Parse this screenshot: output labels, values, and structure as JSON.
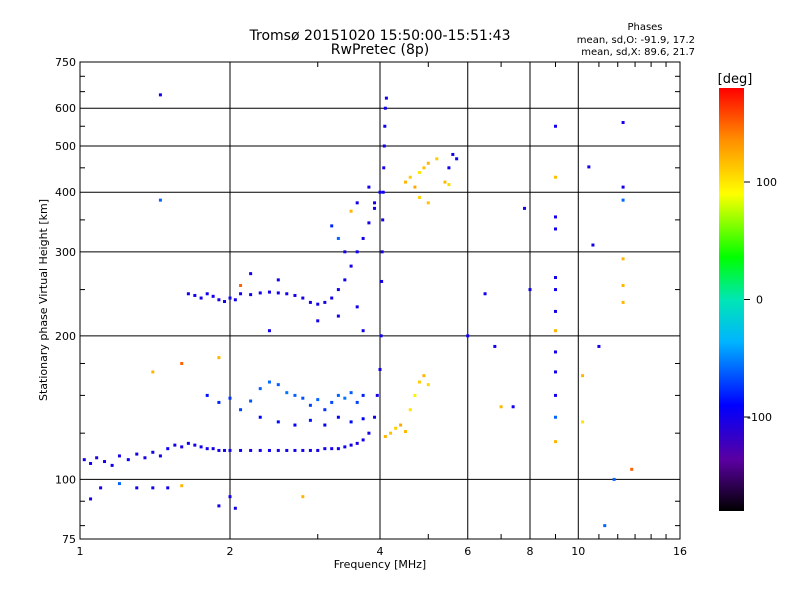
{
  "chart_data": {
    "type": "scatter",
    "title": "Tromsø 20151020 15:50:00-15:51:43",
    "subtitle": "RwPretec (8p)",
    "xlabel": "Frequency [MHz]",
    "ylabel": "Stationary phase Virtual Height [km]",
    "x_scale": "log",
    "y_scale": "log",
    "xlim": [
      1,
      16
    ],
    "ylim": [
      75,
      750
    ],
    "x_ticks": [
      1,
      2,
      4,
      6,
      8,
      10,
      16
    ],
    "y_ticks": [
      75,
      100,
      200,
      300,
      400,
      500,
      600,
      750
    ],
    "grid": true,
    "phase_info": {
      "title": "Phases",
      "line_o": "mean, sd,O: -91.9, 17.2",
      "line_x": "mean, sd,X:  89.6, 21.7"
    },
    "colorbar": {
      "label": "[deg]",
      "ticks": [
        100,
        0,
        -100
      ],
      "range": [
        -180,
        180
      ],
      "colormap": "rainbow"
    },
    "series": [
      {
        "points": [
          [
            1.02,
            110,
            -100
          ],
          [
            1.05,
            108,
            -95
          ],
          [
            1.08,
            111,
            -105
          ],
          [
            1.12,
            109,
            -100
          ],
          [
            1.16,
            107,
            -98
          ],
          [
            1.2,
            112,
            -102
          ],
          [
            1.25,
            110,
            -96
          ],
          [
            1.3,
            113,
            -100
          ],
          [
            1.35,
            111,
            -104
          ],
          [
            1.4,
            114,
            -98
          ],
          [
            1.45,
            112,
            -100
          ],
          [
            1.5,
            116,
            -95
          ],
          [
            1.55,
            118,
            -100
          ],
          [
            1.6,
            117,
            -103
          ],
          [
            1.65,
            119,
            -97
          ],
          [
            1.7,
            118,
            -100
          ],
          [
            1.75,
            117,
            -99
          ],
          [
            1.8,
            116,
            -101
          ],
          [
            1.85,
            116,
            -100
          ],
          [
            1.9,
            115,
            -98
          ],
          [
            1.95,
            115,
            -102
          ],
          [
            2.0,
            115,
            -100
          ],
          [
            2.1,
            115,
            -99
          ],
          [
            2.2,
            115,
            -101
          ],
          [
            2.3,
            115,
            -100
          ],
          [
            2.4,
            115,
            -98
          ],
          [
            2.5,
            115,
            -102
          ],
          [
            2.6,
            115,
            -100
          ],
          [
            2.7,
            115,
            -99
          ],
          [
            2.8,
            115,
            -101
          ],
          [
            2.9,
            115,
            -100
          ],
          [
            3.0,
            115,
            -100
          ],
          [
            3.1,
            116,
            -99
          ],
          [
            3.2,
            116,
            -101
          ],
          [
            3.3,
            116,
            -100
          ],
          [
            3.4,
            117,
            -98
          ],
          [
            3.5,
            118,
            -100
          ],
          [
            3.6,
            119,
            -102
          ],
          [
            3.7,
            121,
            -100
          ],
          [
            3.8,
            125,
            -99
          ],
          [
            3.9,
            135,
            -100
          ],
          [
            3.95,
            150,
            -101
          ],
          [
            4.0,
            170,
            -100
          ],
          [
            4.02,
            200,
            -98
          ],
          [
            4.03,
            260,
            -100
          ],
          [
            4.04,
            300,
            -102
          ],
          [
            4.05,
            350,
            -100
          ],
          [
            4.06,
            400,
            -99
          ],
          [
            4.07,
            450,
            -101
          ],
          [
            4.08,
            500,
            -100
          ],
          [
            4.09,
            550,
            -98
          ],
          [
            4.1,
            600,
            -100
          ],
          [
            4.12,
            630,
            -102
          ],
          [
            1.65,
            245,
            -100
          ],
          [
            1.7,
            243,
            -98
          ],
          [
            1.75,
            240,
            -102
          ],
          [
            1.8,
            245,
            -100
          ],
          [
            1.85,
            242,
            -99
          ],
          [
            1.9,
            238,
            -101
          ],
          [
            1.95,
            236,
            -100
          ],
          [
            2.0,
            240,
            -98
          ],
          [
            2.05,
            238,
            -100
          ],
          [
            2.1,
            245,
            -102
          ],
          [
            2.2,
            244,
            -100
          ],
          [
            2.3,
            246,
            -99
          ],
          [
            2.4,
            247,
            -101
          ],
          [
            2.5,
            246,
            -100
          ],
          [
            2.6,
            245,
            -98
          ],
          [
            2.7,
            243,
            -100
          ],
          [
            2.8,
            240,
            -102
          ],
          [
            2.9,
            235,
            -100
          ],
          [
            3.0,
            233,
            -99
          ],
          [
            3.1,
            235,
            -101
          ],
          [
            3.2,
            240,
            -100
          ],
          [
            3.3,
            250,
            -98
          ],
          [
            3.4,
            262,
            -100
          ],
          [
            3.5,
            280,
            -102
          ],
          [
            3.6,
            300,
            -100
          ],
          [
            3.7,
            320,
            -99
          ],
          [
            3.8,
            345,
            -101
          ],
          [
            3.9,
            370,
            -100
          ],
          [
            4.0,
            400,
            -98
          ],
          [
            1.8,
            150,
            -85
          ],
          [
            1.9,
            145,
            -80
          ],
          [
            2.0,
            148,
            -75
          ],
          [
            2.1,
            140,
            -70
          ],
          [
            2.2,
            146,
            -65
          ],
          [
            2.3,
            155,
            -60
          ],
          [
            2.4,
            160,
            -58
          ],
          [
            2.5,
            158,
            -62
          ],
          [
            2.6,
            152,
            -55
          ],
          [
            2.7,
            150,
            -60
          ],
          [
            2.8,
            148,
            -65
          ],
          [
            2.9,
            143,
            -70
          ],
          [
            3.0,
            147,
            -60
          ],
          [
            3.1,
            140,
            -75
          ],
          [
            3.2,
            145,
            -68
          ],
          [
            3.3,
            150,
            -60
          ],
          [
            3.4,
            148,
            -55
          ],
          [
            3.5,
            152,
            -62
          ],
          [
            3.6,
            145,
            -70
          ],
          [
            3.7,
            150,
            -80
          ],
          [
            2.3,
            135,
            -90
          ],
          [
            2.5,
            132,
            -88
          ],
          [
            2.7,
            130,
            -92
          ],
          [
            2.9,
            133,
            -85
          ],
          [
            3.1,
            130,
            -90
          ],
          [
            3.3,
            135,
            -95
          ],
          [
            3.5,
            132,
            -88
          ],
          [
            3.7,
            134,
            -90
          ],
          [
            4.1,
            123,
            120
          ],
          [
            4.2,
            125,
            115
          ],
          [
            4.3,
            128,
            110
          ],
          [
            4.4,
            130,
            125
          ],
          [
            4.5,
            126,
            118
          ],
          [
            4.6,
            140,
            100
          ],
          [
            4.7,
            150,
            95
          ],
          [
            4.8,
            160,
            110
          ],
          [
            4.9,
            165,
            120
          ],
          [
            5.0,
            158,
            105
          ],
          [
            4.5,
            420,
            120
          ],
          [
            4.6,
            430,
            110
          ],
          [
            4.7,
            410,
            125
          ],
          [
            4.8,
            440,
            100
          ],
          [
            4.9,
            450,
            115
          ],
          [
            5.0,
            460,
            120
          ],
          [
            5.2,
            470,
            110
          ],
          [
            5.4,
            420,
            118
          ],
          [
            5.5,
            415,
            105
          ],
          [
            5.6,
            480,
            -100
          ],
          [
            5.7,
            470,
            -95
          ],
          [
            5.5,
            450,
            -100
          ],
          [
            5.0,
            380,
            115
          ],
          [
            4.8,
            390,
            108
          ],
          [
            1.45,
            640,
            -100
          ],
          [
            1.45,
            385,
            -60
          ],
          [
            9.0,
            550,
            -100
          ],
          [
            9.0,
            430,
            115
          ],
          [
            9.0,
            355,
            -100
          ],
          [
            9.0,
            335,
            -100
          ],
          [
            9.0,
            265,
            -100
          ],
          [
            9.0,
            250,
            -100
          ],
          [
            9.0,
            225,
            -100
          ],
          [
            9.0,
            205,
            120
          ],
          [
            9.0,
            185,
            -100
          ],
          [
            9.0,
            168,
            -100
          ],
          [
            9.0,
            150,
            -100
          ],
          [
            9.0,
            135,
            -60
          ],
          [
            9.0,
            120,
            120
          ],
          [
            10.5,
            452,
            -100
          ],
          [
            10.7,
            310,
            -100
          ],
          [
            12.3,
            560,
            -100
          ],
          [
            12.3,
            410,
            -100
          ],
          [
            12.3,
            385,
            -60
          ],
          [
            12.3,
            290,
            120
          ],
          [
            12.3,
            255,
            120
          ],
          [
            12.3,
            235,
            120
          ],
          [
            12.8,
            105,
            150
          ],
          [
            11.8,
            100,
            -60
          ],
          [
            10.2,
            165,
            120
          ],
          [
            10.2,
            132,
            100
          ],
          [
            11.0,
            190,
            -100
          ],
          [
            11.3,
            80,
            -60
          ],
          [
            7.8,
            370,
            -100
          ],
          [
            6.8,
            190,
            -100
          ],
          [
            6.5,
            245,
            -100
          ],
          [
            8.0,
            250,
            -100
          ],
          [
            7.4,
            142,
            -100
          ],
          [
            7.0,
            142,
            120
          ],
          [
            6.0,
            200,
            -100
          ],
          [
            1.1,
            96,
            -100
          ],
          [
            1.2,
            98,
            -60
          ],
          [
            1.3,
            96,
            -100
          ],
          [
            1.4,
            96,
            -100
          ],
          [
            1.5,
            96,
            -100
          ],
          [
            1.6,
            97,
            120
          ],
          [
            1.9,
            88,
            -100
          ],
          [
            2.0,
            92,
            -100
          ],
          [
            2.05,
            87,
            -100
          ],
          [
            1.05,
            91,
            -100
          ],
          [
            2.8,
            92,
            120
          ],
          [
            1.4,
            168,
            120
          ],
          [
            1.6,
            175,
            150
          ],
          [
            1.9,
            180,
            120
          ],
          [
            3.5,
            365,
            120
          ],
          [
            3.6,
            380,
            -100
          ],
          [
            3.8,
            410,
            -100
          ],
          [
            3.9,
            380,
            -100
          ],
          [
            3.2,
            340,
            -80
          ],
          [
            3.3,
            320,
            -60
          ],
          [
            3.4,
            300,
            -100
          ],
          [
            2.2,
            270,
            -100
          ],
          [
            2.5,
            262,
            -100
          ],
          [
            2.1,
            255,
            150
          ],
          [
            2.4,
            205,
            -100
          ],
          [
            3.0,
            215,
            -100
          ],
          [
            3.3,
            220,
            -100
          ],
          [
            3.6,
            230,
            -100
          ],
          [
            3.7,
            205,
            -100
          ]
        ]
      }
    ]
  }
}
